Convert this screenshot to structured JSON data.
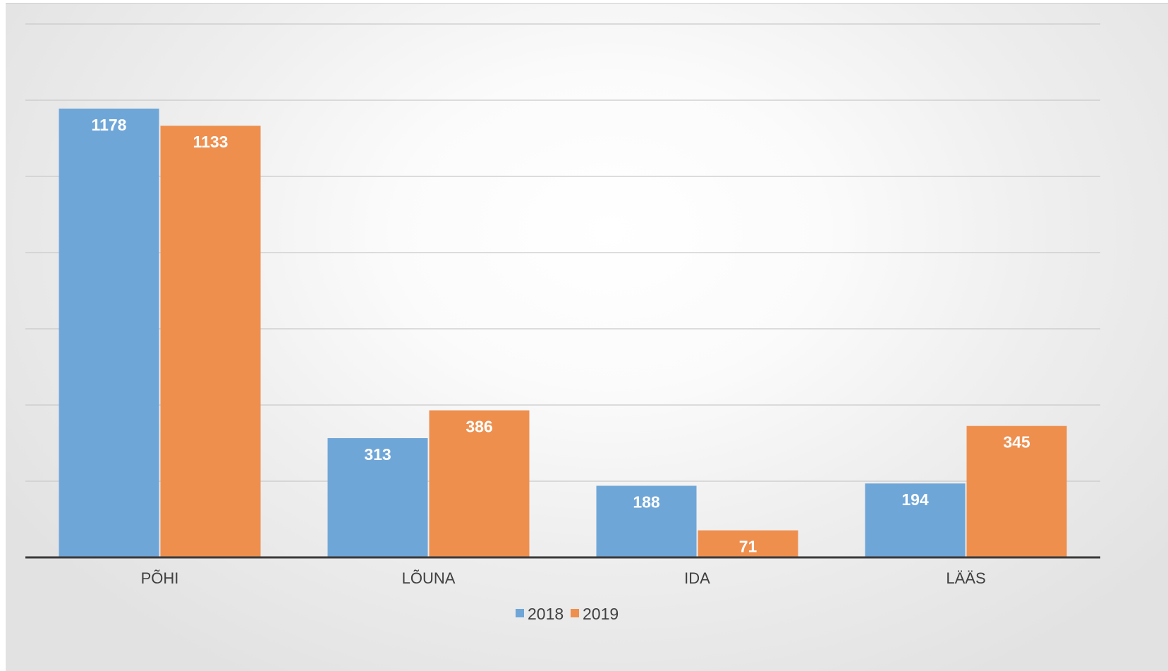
{
  "chart_data": {
    "type": "bar",
    "categories": [
      "PÕHI",
      "LÕUNA",
      "IDA",
      "LÄÄS"
    ],
    "series": [
      {
        "name": "2018",
        "color": "#6fa6d8",
        "values": [
          1178,
          313,
          188,
          194
        ]
      },
      {
        "name": "2019",
        "color": "#ee8f4e",
        "values": [
          1133,
          386,
          71,
          345
        ]
      }
    ],
    "ylim": [
      0,
      1400
    ],
    "grid": true,
    "data_labels": true,
    "legend_position": "bottom",
    "title": "",
    "xlabel": "",
    "ylabel": ""
  }
}
